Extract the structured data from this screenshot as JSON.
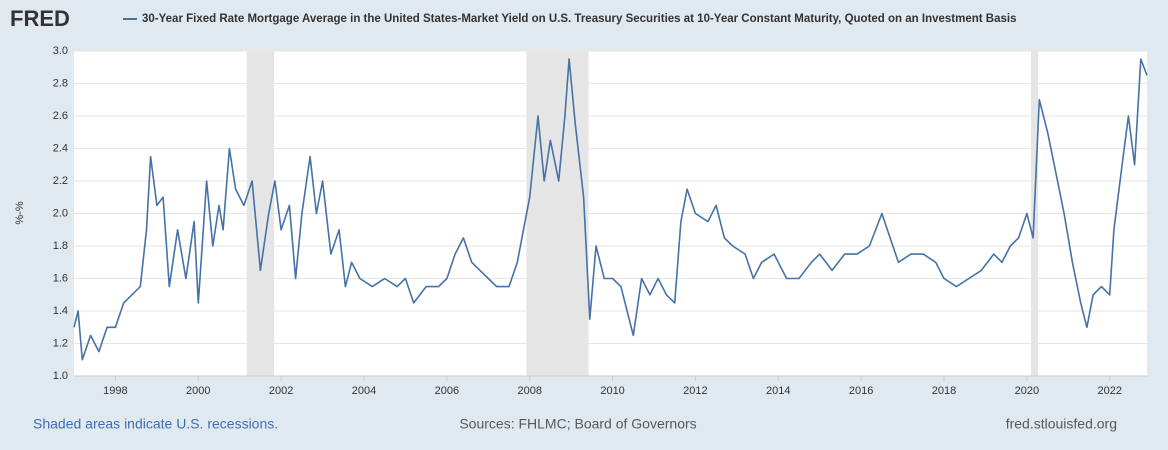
{
  "chart_data": {
    "type": "line",
    "logo": "FRED",
    "title": "30-Year Fixed Rate Mortgage Average in the United States-Market Yield on U.S. Treasury Securities at 10-Year Constant Maturity, Quoted on an Investment Basis",
    "y_label": "%-%",
    "recession_note": "Shaded areas indicate U.S. recessions.",
    "source": "Sources: FHLMC; Board of Governors",
    "site": "fred.stlouisfed.org",
    "xlim": [
      1997,
      2022.9
    ],
    "xticks": [
      1998,
      2000,
      2002,
      2004,
      2006,
      2008,
      2010,
      2012,
      2014,
      2016,
      2018,
      2020,
      2022
    ],
    "ylim": [
      1,
      3
    ],
    "yticks": [
      {
        "value": 1,
        "label": "1.0"
      },
      1.2,
      1.4,
      1.6,
      1.8,
      {
        "value": 2,
        "label": "2.0"
      },
      2.2,
      2.4,
      2.6,
      2.8,
      {
        "value": 3,
        "label": "3.0"
      }
    ],
    "grid": true,
    "recessions": [
      [
        2001.17,
        2001.83
      ],
      [
        2007.92,
        2009.42
      ],
      [
        2020.1,
        2020.27
      ]
    ],
    "recession_color": "#e5e5e5",
    "series": [
      {
        "name": "30-Year Fixed Rate Mortgage Average in the United States-Market Yield on U.S. Treasury Securities at 10-Year Constant Maturity, Quoted on an Investment Basis",
        "color": "#4572a7",
        "x": [
          1997.0,
          1997.1,
          1997.2,
          1997.4,
          1997.6,
          1997.8,
          1998.0,
          1998.2,
          1998.4,
          1998.6,
          1998.75,
          1998.85,
          1999.0,
          1999.15,
          1999.3,
          1999.5,
          1999.7,
          1999.9,
          2000.0,
          2000.2,
          2000.35,
          2000.5,
          2000.6,
          2000.75,
          2000.9,
          2001.1,
          2001.3,
          2001.5,
          2001.7,
          2001.85,
          2002.0,
          2002.2,
          2002.35,
          2002.5,
          2002.7,
          2002.85,
          2003.0,
          2003.2,
          2003.4,
          2003.55,
          2003.7,
          2003.9,
          2004.2,
          2004.5,
          2004.8,
          2005.0,
          2005.2,
          2005.5,
          2005.8,
          2006.0,
          2006.2,
          2006.4,
          2006.6,
          2006.8,
          2007.0,
          2007.2,
          2007.5,
          2007.7,
          2007.85,
          2008.0,
          2008.2,
          2008.35,
          2008.5,
          2008.7,
          2008.85,
          2008.95,
          2009.1,
          2009.3,
          2009.45,
          2009.6,
          2009.8,
          2010.0,
          2010.2,
          2010.5,
          2010.7,
          2010.9,
          2011.1,
          2011.3,
          2011.5,
          2011.65,
          2011.8,
          2012.0,
          2012.3,
          2012.5,
          2012.7,
          2012.9,
          2013.2,
          2013.4,
          2013.6,
          2013.9,
          2014.2,
          2014.5,
          2014.8,
          2015.0,
          2015.3,
          2015.6,
          2015.9,
          2016.2,
          2016.5,
          2016.7,
          2016.9,
          2017.2,
          2017.5,
          2017.8,
          2018.0,
          2018.3,
          2018.6,
          2018.9,
          2019.2,
          2019.4,
          2019.6,
          2019.8,
          2020.0,
          2020.15,
          2020.3,
          2020.5,
          2020.7,
          2020.9,
          2021.1,
          2021.3,
          2021.45,
          2021.6,
          2021.8,
          2022.0,
          2022.1,
          2022.3,
          2022.45,
          2022.6,
          2022.75,
          2022.9
        ],
        "values": [
          1.3,
          1.4,
          1.1,
          1.25,
          1.15,
          1.3,
          1.3,
          1.45,
          1.5,
          1.55,
          1.9,
          2.35,
          2.05,
          2.1,
          1.55,
          1.9,
          1.6,
          1.95,
          1.45,
          2.2,
          1.8,
          2.05,
          1.9,
          2.4,
          2.15,
          2.05,
          2.2,
          1.65,
          2.0,
          2.2,
          1.9,
          2.05,
          1.6,
          2.0,
          2.35,
          2.0,
          2.2,
          1.75,
          1.9,
          1.55,
          1.7,
          1.6,
          1.55,
          1.6,
          1.55,
          1.6,
          1.45,
          1.55,
          1.55,
          1.6,
          1.75,
          1.85,
          1.7,
          1.65,
          1.6,
          1.55,
          1.55,
          1.7,
          1.9,
          2.1,
          2.6,
          2.2,
          2.45,
          2.2,
          2.6,
          2.95,
          2.55,
          2.1,
          1.35,
          1.8,
          1.6,
          1.6,
          1.55,
          1.25,
          1.6,
          1.5,
          1.6,
          1.5,
          1.45,
          1.95,
          2.15,
          2.0,
          1.95,
          2.05,
          1.85,
          1.8,
          1.75,
          1.6,
          1.7,
          1.75,
          1.6,
          1.6,
          1.7,
          1.75,
          1.65,
          1.75,
          1.75,
          1.8,
          2.0,
          1.85,
          1.7,
          1.75,
          1.75,
          1.7,
          1.6,
          1.55,
          1.6,
          1.65,
          1.75,
          1.7,
          1.8,
          1.85,
          2.0,
          1.85,
          2.7,
          2.5,
          2.25,
          2.0,
          1.7,
          1.45,
          1.3,
          1.5,
          1.55,
          1.5,
          1.9,
          2.3,
          2.6,
          2.3,
          2.95,
          2.85
        ]
      }
    ]
  }
}
